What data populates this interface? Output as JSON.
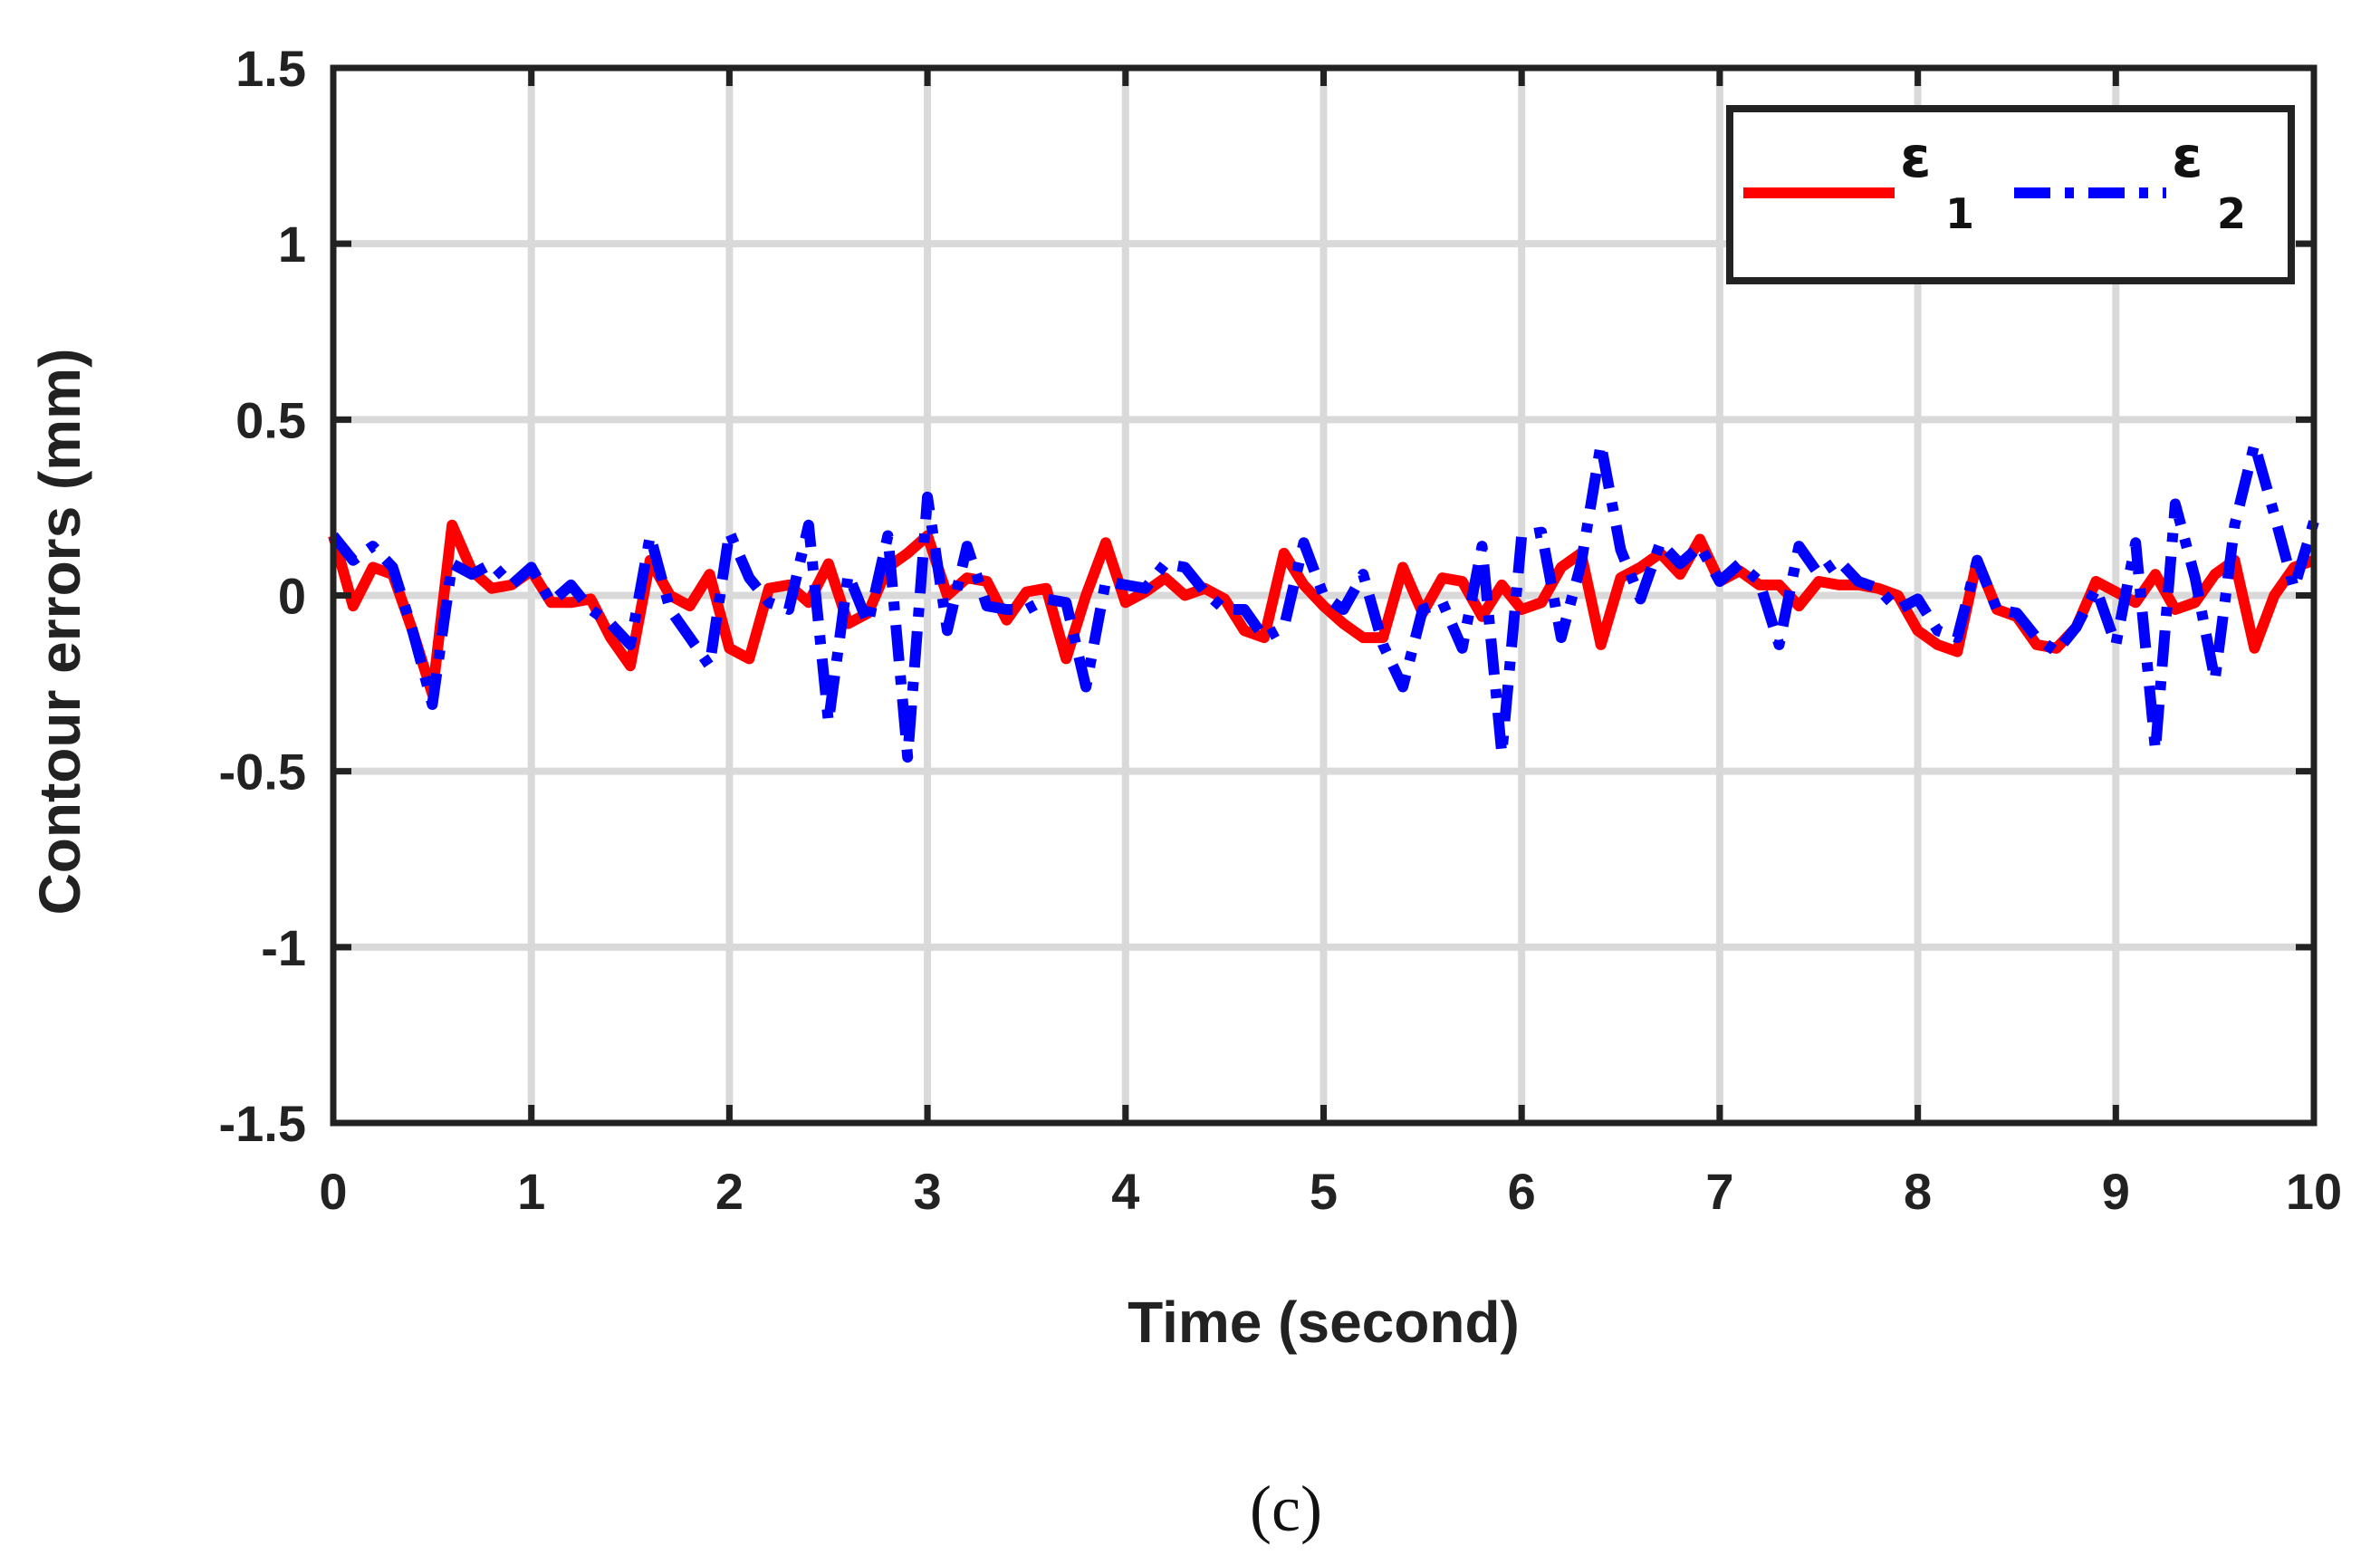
{
  "chart_data": {
    "type": "line",
    "xlabel": "Time (second)",
    "ylabel": "Contour errors (mm)",
    "xlim": [
      0,
      10
    ],
    "ylim": [
      -1.5,
      1.5
    ],
    "xticks": [
      "0",
      "1",
      "2",
      "3",
      "4",
      "5",
      "6",
      "7",
      "8",
      "9",
      "10"
    ],
    "yticks": [
      "1.5",
      "1",
      "0.5",
      "0",
      "-0.5",
      "-1",
      "-1.5"
    ],
    "grid": true,
    "legend_position": "top-right",
    "caption": "(c)",
    "series": [
      {
        "name": "ε1",
        "legend_symbol": "ε",
        "legend_subscript": "1",
        "color": "#ff0000",
        "line_style": "solid",
        "x": [
          0,
          0.1,
          0.2,
          0.3,
          0.4,
          0.5,
          0.6,
          0.7,
          0.8,
          0.9,
          1.0,
          1.1,
          1.2,
          1.3,
          1.4,
          1.5,
          1.6,
          1.7,
          1.8,
          1.9,
          2.0,
          2.1,
          2.2,
          2.3,
          2.4,
          2.5,
          2.6,
          2.7,
          2.8,
          2.9,
          3.0,
          3.1,
          3.2,
          3.3,
          3.4,
          3.5,
          3.6,
          3.7,
          3.8,
          3.9,
          4.0,
          4.1,
          4.2,
          4.3,
          4.4,
          4.5,
          4.6,
          4.7,
          4.8,
          4.9,
          5.0,
          5.1,
          5.2,
          5.3,
          5.4,
          5.5,
          5.6,
          5.7,
          5.8,
          5.9,
          6.0,
          6.1,
          6.2,
          6.3,
          6.4,
          6.5,
          6.6,
          6.7,
          6.8,
          6.9,
          7.0,
          7.1,
          7.2,
          7.3,
          7.4,
          7.5,
          7.6,
          7.7,
          7.8,
          7.9,
          8.0,
          8.1,
          8.2,
          8.3,
          8.4,
          8.5,
          8.6,
          8.7,
          8.8,
          8.9,
          9.0,
          9.1,
          9.2,
          9.3,
          9.4,
          9.5,
          9.6,
          9.7,
          9.8,
          9.9,
          10.0
        ],
        "y": [
          0.17,
          -0.03,
          0.08,
          0.06,
          -0.1,
          -0.28,
          0.2,
          0.07,
          0.02,
          0.03,
          0.07,
          -0.02,
          -0.02,
          -0.01,
          -0.12,
          -0.2,
          0.1,
          0.0,
          -0.03,
          0.06,
          -0.15,
          -0.18,
          0.02,
          0.03,
          -0.02,
          0.09,
          -0.08,
          -0.05,
          0.08,
          0.12,
          0.17,
          0.0,
          0.05,
          0.04,
          -0.07,
          0.01,
          0.02,
          -0.18,
          0.0,
          0.15,
          -0.02,
          0.01,
          0.05,
          0.0,
          0.02,
          -0.01,
          -0.1,
          -0.12,
          0.12,
          0.03,
          -0.03,
          -0.08,
          -0.12,
          -0.12,
          0.08,
          -0.05,
          0.05,
          0.04,
          -0.06,
          0.03,
          -0.04,
          -0.02,
          0.08,
          0.12,
          -0.14,
          0.05,
          0.08,
          0.12,
          0.06,
          0.16,
          0.04,
          0.07,
          0.03,
          0.03,
          -0.03,
          0.04,
          0.03,
          0.03,
          0.02,
          0.0,
          -0.1,
          -0.14,
          -0.16,
          0.1,
          -0.04,
          -0.06,
          -0.14,
          -0.15,
          -0.09,
          0.04,
          0.01,
          -0.02,
          0.06,
          -0.04,
          -0.02,
          0.06,
          0.1,
          -0.15,
          0.0,
          0.08,
          0.1
        ]
      },
      {
        "name": "ε2",
        "legend_symbol": "ε",
        "legend_subscript": "2",
        "color": "#0000ff",
        "line_style": "dash-dot",
        "x": [
          0,
          0.1,
          0.2,
          0.3,
          0.4,
          0.5,
          0.6,
          0.7,
          0.8,
          0.9,
          1.0,
          1.1,
          1.2,
          1.3,
          1.4,
          1.5,
          1.6,
          1.7,
          1.8,
          1.9,
          2.0,
          2.1,
          2.2,
          2.3,
          2.4,
          2.5,
          2.6,
          2.7,
          2.8,
          2.9,
          3.0,
          3.1,
          3.2,
          3.3,
          3.4,
          3.5,
          3.6,
          3.7,
          3.8,
          3.9,
          4.0,
          4.1,
          4.2,
          4.3,
          4.4,
          4.5,
          4.6,
          4.7,
          4.8,
          4.9,
          5.0,
          5.1,
          5.2,
          5.3,
          5.4,
          5.5,
          5.6,
          5.7,
          5.8,
          5.9,
          6.0,
          6.1,
          6.2,
          6.3,
          6.4,
          6.5,
          6.6,
          6.7,
          6.8,
          6.9,
          7.0,
          7.1,
          7.2,
          7.3,
          7.4,
          7.5,
          7.6,
          7.7,
          7.8,
          7.9,
          8.0,
          8.1,
          8.2,
          8.3,
          8.4,
          8.5,
          8.6,
          8.7,
          8.8,
          8.9,
          9.0,
          9.1,
          9.2,
          9.3,
          9.4,
          9.5,
          9.6,
          9.7,
          9.8,
          9.9,
          10.0
        ],
        "y": [
          0.17,
          0.1,
          0.14,
          0.08,
          -0.1,
          -0.31,
          0.09,
          0.06,
          0.09,
          0.03,
          0.08,
          -0.02,
          0.03,
          -0.04,
          -0.08,
          -0.14,
          0.17,
          -0.04,
          -0.12,
          -0.2,
          0.18,
          0.05,
          -0.02,
          -0.04,
          0.2,
          -0.36,
          0.06,
          -0.08,
          0.17,
          -0.46,
          0.28,
          -0.1,
          0.14,
          -0.03,
          -0.04,
          -0.04,
          -0.01,
          -0.02,
          -0.26,
          0.04,
          0.03,
          0.02,
          0.09,
          0.08,
          0.01,
          -0.04,
          -0.04,
          -0.12,
          -0.09,
          0.15,
          0.0,
          -0.04,
          0.06,
          -0.14,
          -0.26,
          -0.04,
          -0.02,
          -0.15,
          0.14,
          -0.45,
          0.17,
          0.18,
          -0.12,
          0.09,
          0.43,
          0.13,
          -0.01,
          0.15,
          0.09,
          0.14,
          0.04,
          0.09,
          0.04,
          -0.14,
          0.14,
          0.06,
          0.1,
          0.04,
          0.02,
          -0.04,
          -0.01,
          -0.1,
          -0.12,
          0.1,
          -0.04,
          -0.05,
          -0.12,
          -0.16,
          -0.09,
          0.02,
          -0.14,
          0.15,
          -0.44,
          0.26,
          0.05,
          -0.24,
          0.2,
          0.43,
          0.23,
          0.02,
          0.21
        ]
      }
    ]
  }
}
